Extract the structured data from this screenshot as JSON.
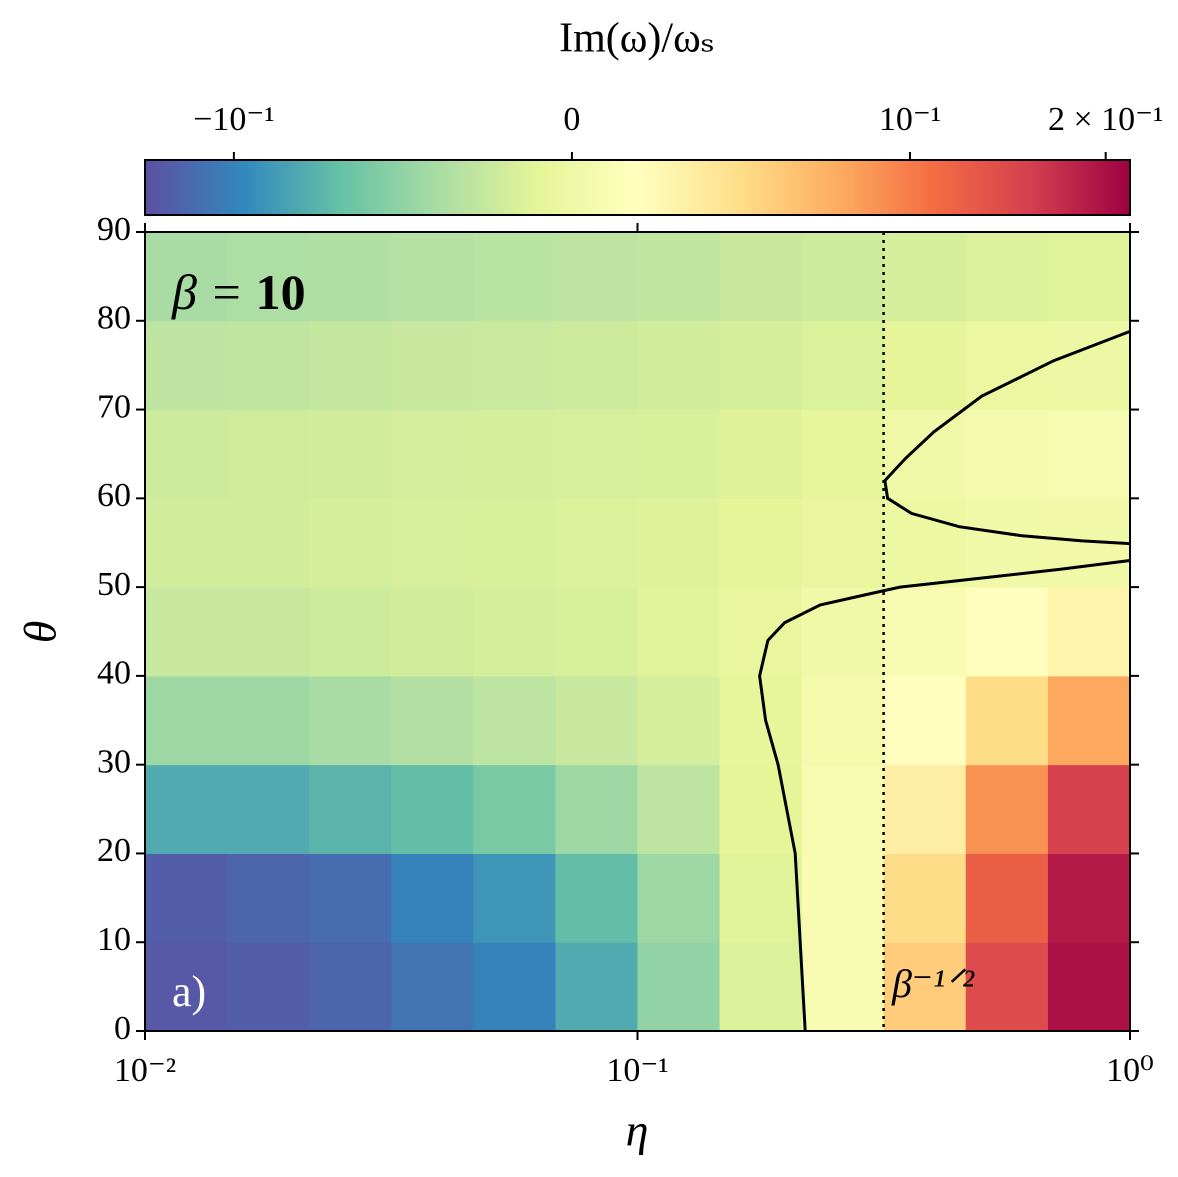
{
  "chart_data": {
    "type": "heatmap",
    "colorbar_label": "Im(ω)/ωₛ",
    "x_label": "η",
    "y_label": "θ",
    "annotations": [
      "β = 10",
      "a)",
      "β⁻¹ᐟ²"
    ],
    "x_scale": "log",
    "xlim": [
      0.01,
      1
    ],
    "xticks": [
      {
        "value": 0.01,
        "label": "10⁻²"
      },
      {
        "value": 0.1,
        "label": "10⁻¹"
      },
      {
        "value": 1,
        "label": "10⁰"
      }
    ],
    "ylim": [
      0,
      90
    ],
    "yticks": [
      0,
      10,
      20,
      30,
      40,
      50,
      60,
      70,
      80,
      90
    ],
    "color_scale": "symlog",
    "linthresh": 0.1,
    "linscale": 0.52,
    "clim": [
      -0.137,
      0.218
    ],
    "cticks": [
      {
        "value": -0.1,
        "label": "−10⁻¹"
      },
      {
        "value": 0,
        "label": "0"
      },
      {
        "value": 0.1,
        "label": "10⁻¹"
      },
      {
        "value": 0.2,
        "label": "2 × 10⁻¹"
      }
    ],
    "colormap": [
      "#5e4fa2",
      "#3288bd",
      "#66c2a5",
      "#abdda4",
      "#e6f598",
      "#ffffbf",
      "#fee08b",
      "#fdae61",
      "#f46d43",
      "#d53e4f",
      "#9e0142"
    ],
    "x": [
      0.0121,
      0.0178,
      0.0261,
      0.0383,
      0.0562,
      0.0826,
      0.121,
      0.178,
      0.261,
      0.383,
      0.562,
      0.826
    ],
    "y": [
      5,
      15,
      25,
      35,
      45,
      55,
      65,
      75,
      85
    ],
    "z": [
      [
        -0.13,
        -0.125,
        -0.12,
        -0.11,
        -0.1,
        -0.08,
        -0.05,
        -0.015,
        0.01,
        0.06,
        0.14,
        0.2
      ],
      [
        -0.125,
        -0.12,
        -0.115,
        -0.1,
        -0.09,
        -0.07,
        -0.045,
        -0.012,
        0.01,
        0.05,
        0.12,
        0.19
      ],
      [
        -0.08,
        -0.08,
        -0.075,
        -0.07,
        -0.06,
        -0.045,
        -0.03,
        -0.01,
        0.008,
        0.035,
        0.09,
        0.15
      ],
      [
        -0.045,
        -0.045,
        -0.04,
        -0.035,
        -0.03,
        -0.025,
        -0.018,
        -0.008,
        0.005,
        0.02,
        0.05,
        0.08
      ],
      [
        -0.025,
        -0.025,
        -0.022,
        -0.02,
        -0.018,
        -0.016,
        -0.012,
        -0.006,
        0.002,
        0.01,
        0.02,
        0.03
      ],
      [
        -0.02,
        -0.02,
        -0.018,
        -0.017,
        -0.016,
        -0.015,
        -0.013,
        -0.01,
        -0.006,
        -0.002,
        0.002,
        0.003
      ],
      [
        -0.022,
        -0.021,
        -0.02,
        -0.019,
        -0.018,
        -0.017,
        -0.016,
        -0.013,
        -0.008,
        0.002,
        0.006,
        0.008
      ],
      [
        -0.03,
        -0.029,
        -0.027,
        -0.025,
        -0.024,
        -0.022,
        -0.02,
        -0.018,
        -0.015,
        -0.01,
        -0.003,
        -0.001
      ],
      [
        -0.04,
        -0.038,
        -0.036,
        -0.034,
        -0.032,
        -0.03,
        -0.028,
        -0.025,
        -0.022,
        -0.018,
        -0.014,
        -0.012
      ]
    ],
    "contours": [
      {
        "x": [
          0.219,
          0.209,
          0.193,
          0.182,
          0.177,
          0.184,
          0.199,
          0.235,
          0.283,
          0.341,
          0.496,
          0.719,
          1.0
        ],
        "y": [
          0,
          20,
          30,
          35,
          40,
          44,
          46,
          48,
          49,
          50,
          51,
          52,
          53
        ]
      },
      {
        "x": [
          1.0,
          0.7,
          0.5,
          0.4,
          0.35,
          0.318,
          0.322,
          0.36,
          0.45,
          0.6,
          0.8,
          1.0
        ],
        "y": [
          78.8,
          75.5,
          71.5,
          67.5,
          64.5,
          62,
          60,
          58.3,
          56.8,
          55.8,
          55.2,
          54.9
        ]
      }
    ],
    "vline": 0.316
  }
}
